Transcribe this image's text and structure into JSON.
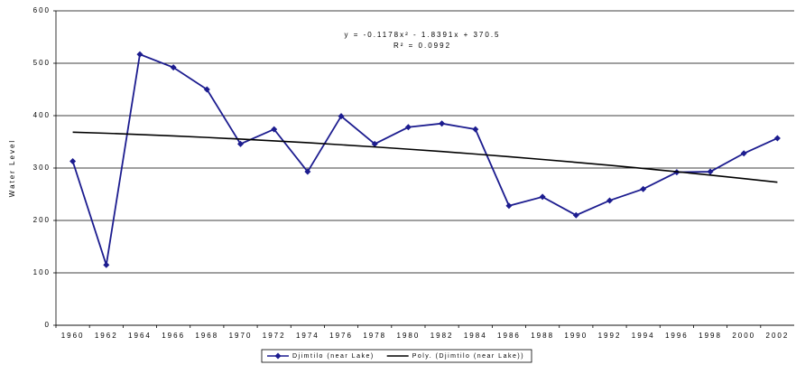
{
  "chart_data": {
    "type": "line",
    "annotations": [
      "y = -0.1178x² - 1.8391x + 370.5",
      "R² = 0.0992"
    ],
    "y_label": "Water Level",
    "categories": [
      "1960",
      "1962",
      "1964",
      "1966",
      "1968",
      "1970",
      "1972",
      "1974",
      "1976",
      "1978",
      "1980",
      "1982",
      "1984",
      "1986",
      "1988",
      "1990",
      "1992",
      "1994",
      "1996",
      "1998",
      "2000",
      "2002"
    ],
    "series": [
      {
        "name": "Djimtilo (near Lake)",
        "color": "#1c1c8f",
        "marker": "diamond",
        "values": [
          313,
          115,
          517,
          492,
          450,
          346,
          374,
          293,
          399,
          346,
          378,
          385,
          374,
          228,
          245,
          210,
          238,
          260,
          292,
          293,
          328,
          357
        ]
      },
      {
        "name": "Poly. (Djimtilo (near Lake))",
        "color": "#000000",
        "values": [
          368.5,
          366.4,
          363.9,
          361.3,
          358.4,
          355.2,
          351.9,
          348.3,
          344.4,
          340.3,
          336.0,
          331.5,
          326.7,
          321.7,
          316.4,
          310.9,
          305.2,
          299.2,
          293.0,
          286.6,
          279.9,
          273.0
        ]
      }
    ],
    "ylim": [
      0,
      600
    ],
    "yticks": [
      0,
      100,
      200,
      300,
      400,
      500,
      600
    ],
    "grid": true
  }
}
